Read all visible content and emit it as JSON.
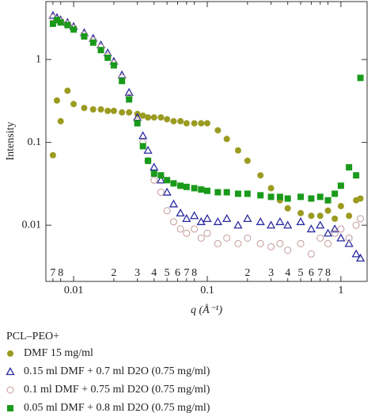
{
  "chart_data": {
    "type": "scatter",
    "xlabel": "q (Å⁻¹)",
    "ylabel": "Intensity",
    "xscale": "log",
    "yscale": "log",
    "xlim": [
      0.0062,
      1.57
    ],
    "ylim": [
      0.0021,
      5
    ],
    "xticks": [
      {
        "value": 0.007,
        "label": "7"
      },
      {
        "value": 0.008,
        "label": "8"
      },
      0.01,
      {
        "value": 0.02,
        "label": "2"
      },
      {
        "value": 0.03,
        "label": "3"
      },
      {
        "value": 0.04,
        "label": "4"
      },
      {
        "value": 0.05,
        "label": "5"
      },
      {
        "value": 0.06,
        "label": "6"
      },
      {
        "value": 0.07,
        "label": "7"
      },
      {
        "value": 0.08,
        "label": "8"
      },
      0.1,
      {
        "value": 0.2,
        "label": "2"
      },
      {
        "value": 0.3,
        "label": "3"
      },
      {
        "value": 0.4,
        "label": "4"
      },
      {
        "value": 0.5,
        "label": "5"
      },
      {
        "value": 0.6,
        "label": "6"
      },
      {
        "value": 0.7,
        "label": "7"
      },
      {
        "value": 0.8,
        "label": "8"
      },
      1
    ],
    "yticks": [
      0.01,
      0.1,
      1
    ],
    "legend_title": "PCL–PEO+",
    "x": [
      0.007,
      0.0075,
      0.008,
      0.009,
      0.01,
      0.012,
      0.014,
      0.016,
      0.018,
      0.02,
      0.023,
      0.026,
      0.03,
      0.033,
      0.036,
      0.04,
      0.045,
      0.05,
      0.056,
      0.063,
      0.07,
      0.08,
      0.09,
      0.1,
      0.12,
      0.14,
      0.17,
      0.2,
      0.25,
      0.3,
      0.35,
      0.4,
      0.5,
      0.6,
      0.7,
      0.8,
      0.9,
      1.0,
      1.15,
      1.3,
      1.4
    ],
    "series": [
      {
        "name": "DMF 15 mg/ml",
        "color": "#9b9b22",
        "marker": "circle",
        "values": [
          0.07,
          0.32,
          0.18,
          0.42,
          0.29,
          0.26,
          0.25,
          0.25,
          0.24,
          0.24,
          0.23,
          0.23,
          0.22,
          0.21,
          0.2,
          0.2,
          0.2,
          0.19,
          0.18,
          0.18,
          0.17,
          0.17,
          0.17,
          0.17,
          0.14,
          0.11,
          0.08,
          0.06,
          0.04,
          0.028,
          0.02,
          0.016,
          0.014,
          0.013,
          0.013,
          0.015,
          0.012,
          0.017,
          0.013,
          0.02,
          0.021
        ]
      },
      {
        "name": "0.15 ml DMF + 0.7 ml D2O (0.75 mg/ml)",
        "color": "#2a2aa0",
        "marker": "triangle",
        "values": [
          3.4,
          3.2,
          3.0,
          2.8,
          2.5,
          2.1,
          1.8,
          1.5,
          1.2,
          0.95,
          0.65,
          0.4,
          0.2,
          0.12,
          0.08,
          0.05,
          0.035,
          0.025,
          0.018,
          0.014,
          0.012,
          0.013,
          0.011,
          0.012,
          0.011,
          0.012,
          0.01,
          0.012,
          0.011,
          0.01,
          0.011,
          0.01,
          0.011,
          0.009,
          0.01,
          0.008,
          0.009,
          0.007,
          0.006,
          0.0045,
          0.004
        ]
      },
      {
        "name": "0.1 ml DMF + 0.75 ml D2O (0.75 mg/ml)",
        "color": "#c49a9a",
        "marker": "open-circle",
        "values": [
          3.2,
          3.0,
          2.9,
          2.7,
          2.4,
          2.0,
          1.7,
          1.4,
          1.1,
          0.9,
          0.6,
          0.35,
          0.18,
          0.1,
          0.06,
          0.035,
          0.025,
          0.015,
          0.011,
          0.009,
          0.008,
          0.009,
          0.007,
          0.008,
          0.006,
          0.007,
          0.006,
          0.007,
          0.006,
          0.0055,
          0.006,
          0.005,
          0.006,
          0.0045,
          0.007,
          0.006,
          0.008,
          0.009,
          0.007,
          0.01,
          0.012
        ]
      },
      {
        "name": "0.05 ml DMF + 0.8 ml D2O (0.75 mg/ml)",
        "color": "#1a9a1a",
        "marker": "square",
        "values": [
          2.7,
          3.0,
          2.8,
          2.6,
          2.3,
          1.9,
          1.6,
          1.3,
          1.05,
          0.85,
          0.55,
          0.33,
          0.17,
          0.09,
          0.06,
          0.042,
          0.04,
          0.035,
          0.032,
          0.03,
          0.029,
          0.028,
          0.027,
          0.026,
          0.025,
          0.025,
          0.024,
          0.024,
          0.023,
          0.022,
          0.022,
          0.021,
          0.022,
          0.021,
          0.022,
          0.02,
          0.024,
          0.03,
          0.05,
          0.04,
          0.6
        ]
      }
    ]
  }
}
